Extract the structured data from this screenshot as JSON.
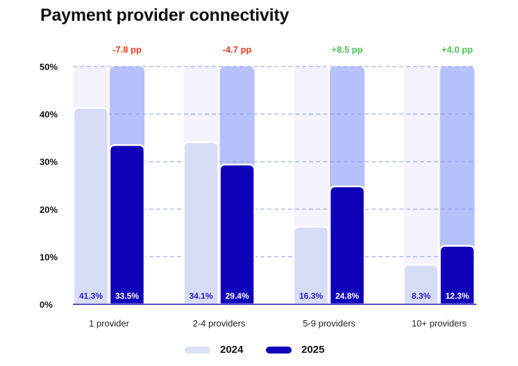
{
  "title": "Payment provider connectivity",
  "colors": {
    "bg_2024": "#f2f3fc",
    "bg_2025": "#b6c0fb",
    "bar_2024": "#d7dcf6",
    "bar_2025": "#1100b9",
    "label_2024": "#2a1fc4",
    "label_2025": "#ffffff",
    "negative": "#f03a22",
    "positive": "#4cc35a",
    "grid": "#8e9af0",
    "axis": "#1a10b5"
  },
  "legend": [
    {
      "label": "2024",
      "color": "#dfe2f7"
    },
    {
      "label": "2025",
      "color": "#1100b9"
    }
  ],
  "chart_data": {
    "type": "bar",
    "title": "Payment provider connectivity",
    "xlabel": "",
    "ylabel": "",
    "ylim": [
      0,
      50
    ],
    "yticks": [
      "0%",
      "10%",
      "20%",
      "30%",
      "40%",
      "50%"
    ],
    "ytick_values": [
      0,
      10,
      20,
      30,
      40,
      50
    ],
    "grid": true,
    "legend_position": "bottom-center",
    "categories": [
      "1 provider",
      "2-4 providers",
      "5-9 providers",
      "10+ providers"
    ],
    "series": [
      {
        "name": "2024",
        "values": [
          41.3,
          34.1,
          16.3,
          8.3
        ],
        "labels": [
          "41.3%",
          "34.1%",
          "16.3%",
          "8.3%"
        ]
      },
      {
        "name": "2025",
        "values": [
          33.5,
          29.4,
          24.8,
          12.3
        ],
        "labels": [
          "33.5%",
          "29.4%",
          "24.8%",
          "12.3%"
        ]
      }
    ],
    "annotations": [
      {
        "category": "1 provider",
        "text": "-7.8 pp",
        "sign": "negative"
      },
      {
        "category": "2-4 providers",
        "text": "-4.7 pp",
        "sign": "negative"
      },
      {
        "category": "5-9 providers",
        "text": "+8.5 pp",
        "sign": "positive"
      },
      {
        "category": "10+ providers",
        "text": "+4.0 pp",
        "sign": "positive"
      }
    ]
  }
}
